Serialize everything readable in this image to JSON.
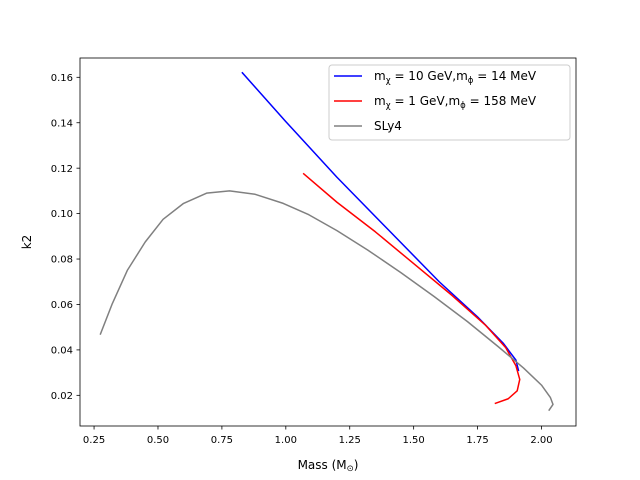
{
  "chart_data": {
    "type": "line",
    "title": "",
    "xlabel": "Mass (M",
    "xlabel_sub": "⊙",
    "xlabel_close": ")",
    "ylabel": "k2",
    "xlim": [
      0.195,
      2.135
    ],
    "ylim": [
      0.0065,
      0.1685
    ],
    "xticks": [
      {
        "value": 0.25,
        "label": "0.25"
      },
      {
        "value": 0.5,
        "label": "0.50"
      },
      {
        "value": 0.75,
        "label": "0.75"
      },
      {
        "value": 1.0,
        "label": "1.00"
      },
      {
        "value": 1.25,
        "label": "1.25"
      },
      {
        "value": 1.5,
        "label": "1.50"
      },
      {
        "value": 1.75,
        "label": "1.75"
      },
      {
        "value": 2.0,
        "label": "2.00"
      }
    ],
    "yticks": [
      {
        "value": 0.02,
        "label": "0.02"
      },
      {
        "value": 0.04,
        "label": "0.04"
      },
      {
        "value": 0.06,
        "label": "0.06"
      },
      {
        "value": 0.08,
        "label": "0.08"
      },
      {
        "value": 0.1,
        "label": "0.10"
      },
      {
        "value": 0.12,
        "label": "0.12"
      },
      {
        "value": 0.14,
        "label": "0.14"
      },
      {
        "value": 0.16,
        "label": "0.16"
      }
    ],
    "grid": false,
    "legend_position": "top-right",
    "series": [
      {
        "name": "m_χ = 10 GeV,m_ϕ = 14 MeV",
        "legend_parts": {
          "m1": "m",
          "sub1": "χ",
          "mid": " = 10 GeV,m",
          "sub2": "ϕ",
          "end": " = 14 MeV"
        },
        "color": "#0000ff",
        "x": [
          0.83,
          1.0,
          1.2,
          1.4,
          1.6,
          1.75,
          1.85,
          1.9,
          1.91
        ],
        "y": [
          0.162,
          0.1405,
          0.116,
          0.093,
          0.07,
          0.0545,
          0.043,
          0.0355,
          0.031
        ]
      },
      {
        "name": "m_χ = 1 GeV,m_ϕ = 158 MeV",
        "legend_parts": {
          "m1": "m",
          "sub1": "χ",
          "mid": " = 1 GeV,m",
          "sub2": "ϕ",
          "end": " = 158 MeV"
        },
        "color": "#ff0000",
        "x": [
          1.07,
          1.2,
          1.35,
          1.5,
          1.65,
          1.78,
          1.86,
          1.9,
          1.915,
          1.905,
          1.87,
          1.82
        ],
        "y": [
          0.1175,
          0.105,
          0.092,
          0.078,
          0.064,
          0.051,
          0.041,
          0.033,
          0.027,
          0.022,
          0.0185,
          0.0165
        ]
      },
      {
        "name": "SLy4",
        "legend_parts": {
          "m1": "SLy4",
          "sub1": "",
          "mid": "",
          "sub2": "",
          "end": ""
        },
        "color": "#808080",
        "x": [
          0.275,
          0.32,
          0.38,
          0.45,
          0.52,
          0.6,
          0.69,
          0.78,
          0.88,
          0.99,
          1.09,
          1.2,
          1.32,
          1.45,
          1.58,
          1.71,
          1.83,
          1.93,
          2.0,
          2.035,
          2.045,
          2.03
        ],
        "y": [
          0.047,
          0.06,
          0.075,
          0.0875,
          0.0975,
          0.1045,
          0.109,
          0.11,
          0.1085,
          0.1045,
          0.0995,
          0.0925,
          0.084,
          0.074,
          0.0635,
          0.0525,
          0.0415,
          0.032,
          0.0245,
          0.019,
          0.016,
          0.0135
        ]
      }
    ]
  }
}
